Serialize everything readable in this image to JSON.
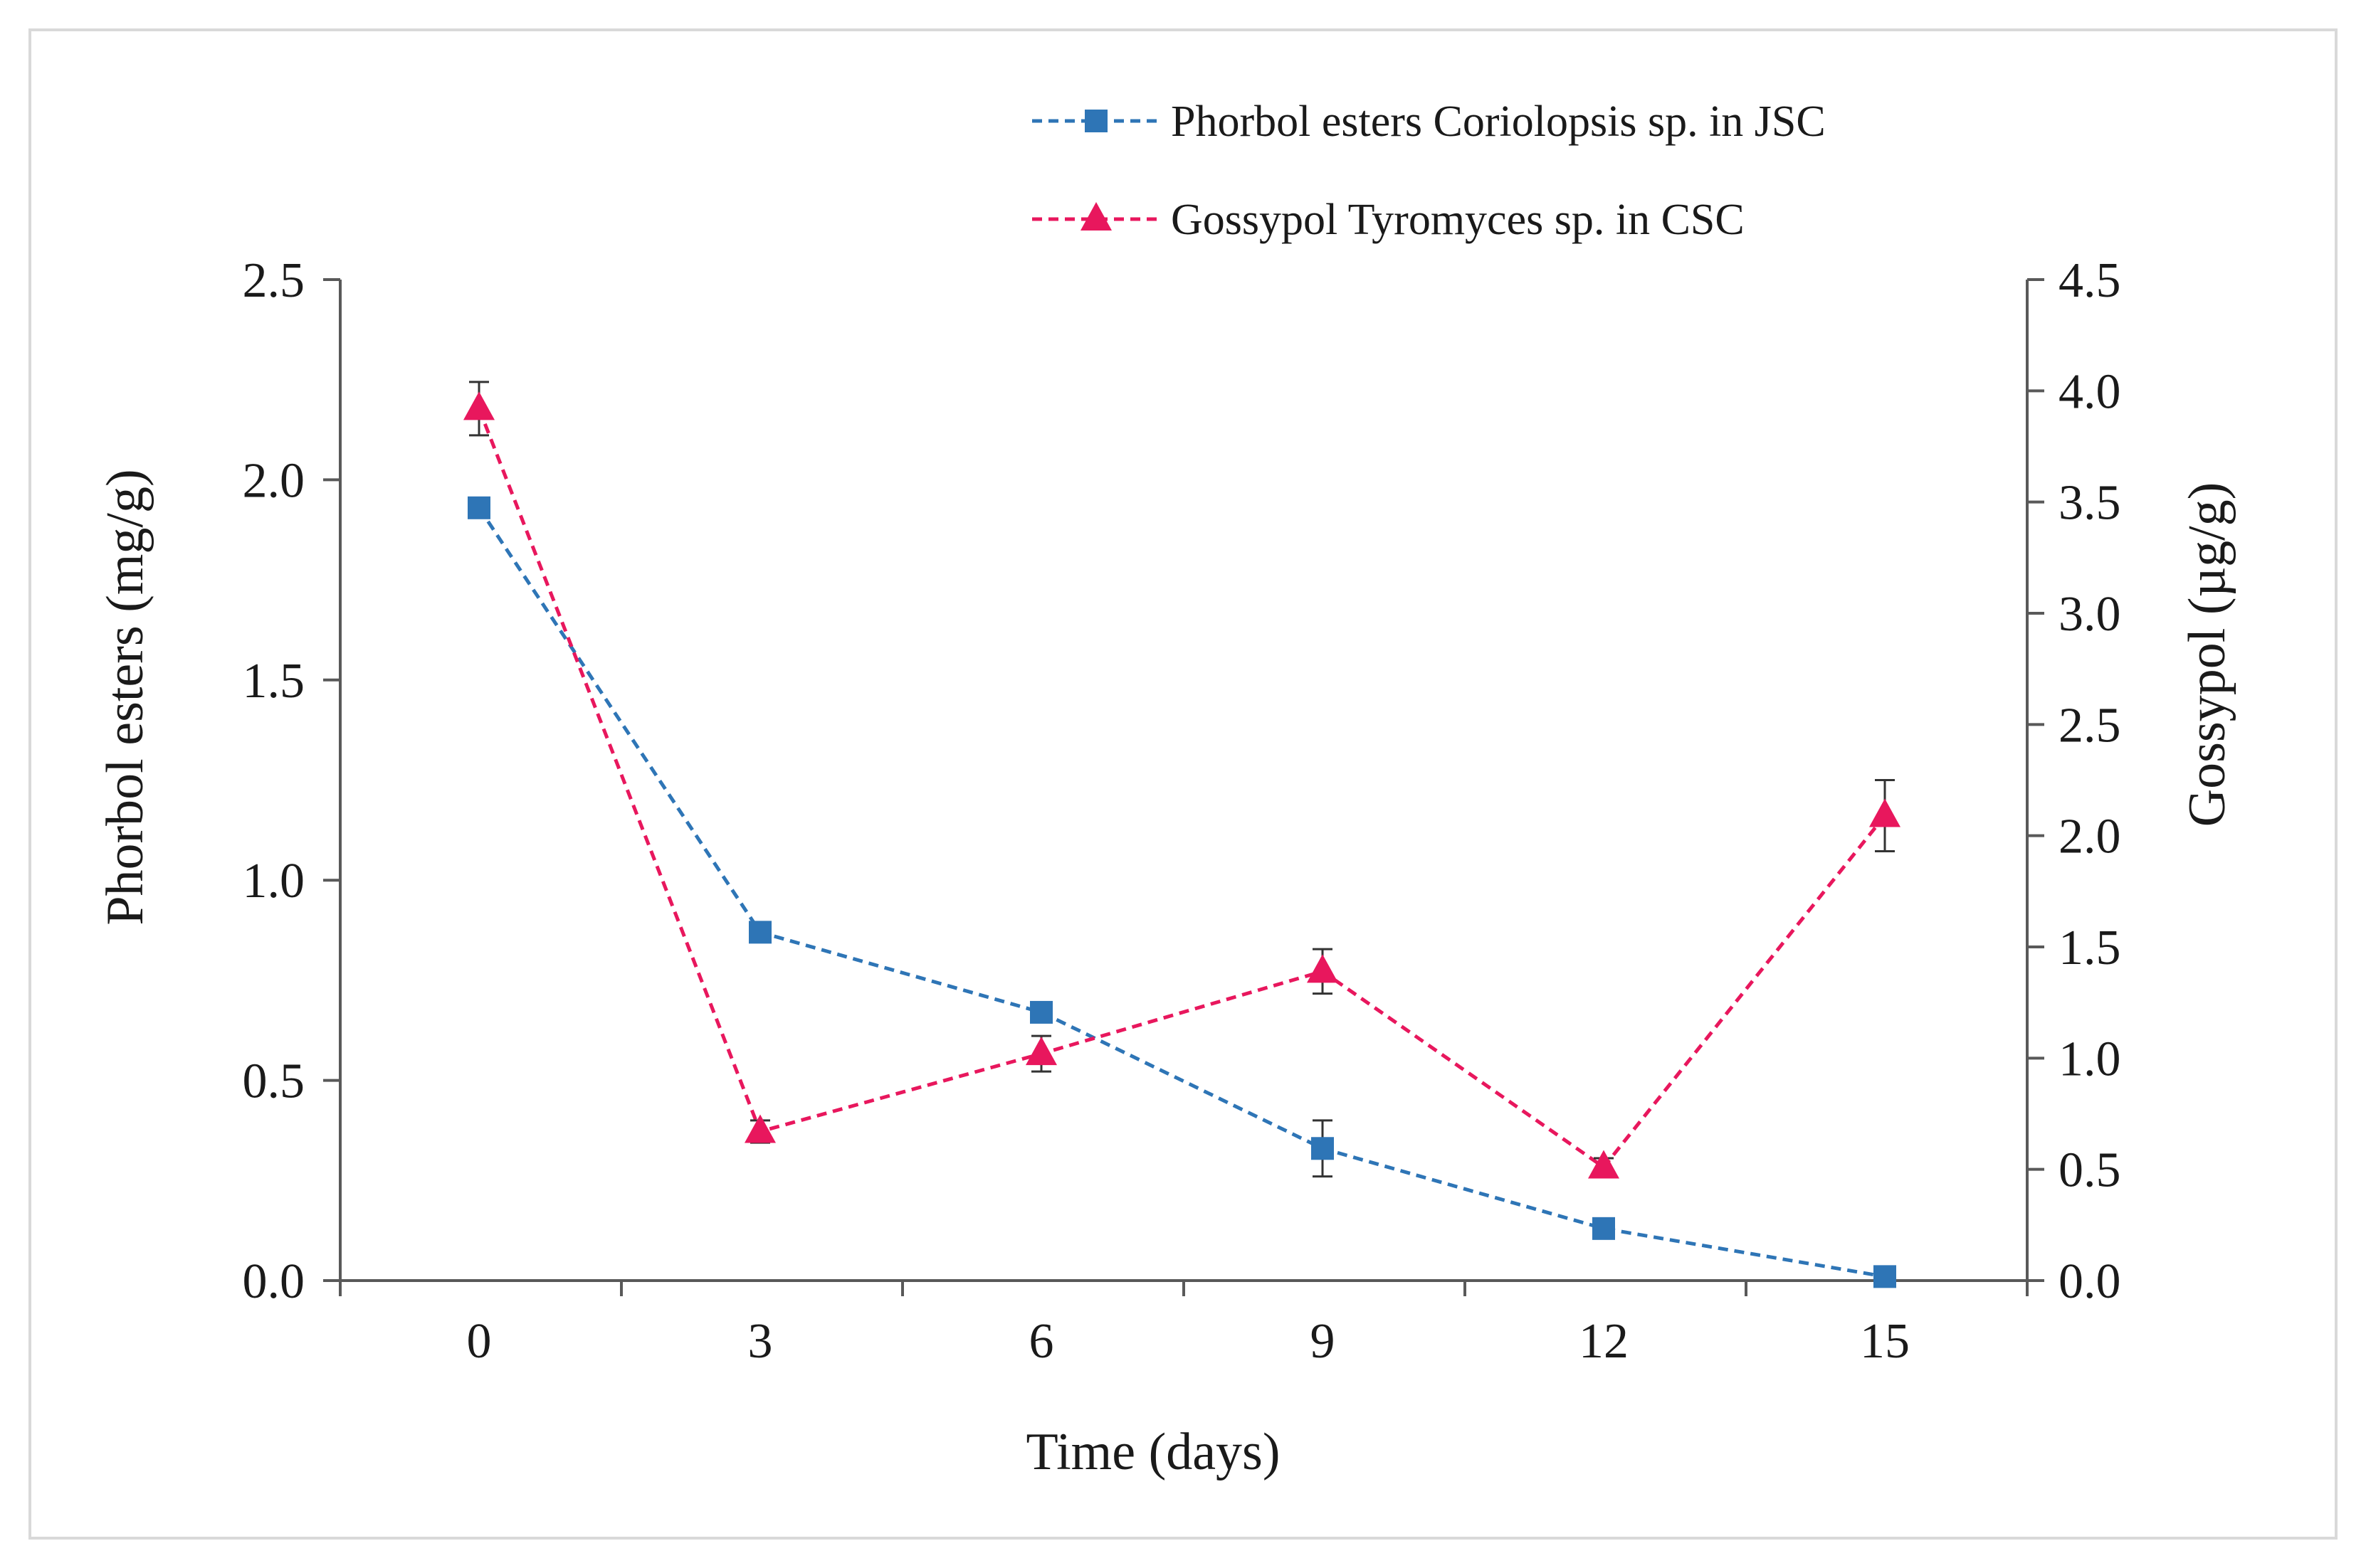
{
  "chart_data": {
    "type": "line",
    "title": "",
    "xlabel": "Time (days)",
    "ylabel_left": "Phorbol esters (mg/g)",
    "ylabel_right": "Gossypol (µg/g)",
    "x": [
      0,
      3,
      6,
      9,
      12,
      15
    ],
    "x_tick_labels": [
      "0",
      "3",
      "6",
      "9",
      "12",
      "15"
    ],
    "ylim_left": [
      0,
      2.5
    ],
    "y_ticks_left": [
      "0.0",
      "0.5",
      "1.0",
      "1.5",
      "2.0",
      "2.5"
    ],
    "ylim_right": [
      0,
      4.5
    ],
    "y_ticks_right": [
      "0.0",
      "0.5",
      "1.0",
      "1.5",
      "2.0",
      "2.5",
      "3.0",
      "3.5",
      "4.0",
      "4.5"
    ],
    "grid": false,
    "legend_position": "top-right",
    "series": [
      {
        "name": "Phorbol esters Coriolopsis sp.  in JSC",
        "axis": "left",
        "marker": "square",
        "line_style": "dashed",
        "color": "#2e75b6",
        "values": [
          1.93,
          0.87,
          0.67,
          0.33,
          0.13,
          0.01
        ],
        "errors": [
          0.02,
          0.02,
          0.02,
          0.07,
          0.02,
          0.01
        ]
      },
      {
        "name": "Gossypol Tyromyces sp.  in CSC",
        "axis": "right",
        "marker": "triangle",
        "line_style": "dashed",
        "color": "#e8175d",
        "values": [
          3.92,
          0.67,
          1.02,
          1.39,
          0.51,
          2.09
        ],
        "errors": [
          0.12,
          0.05,
          0.08,
          0.1,
          0.04,
          0.16
        ]
      }
    ]
  }
}
